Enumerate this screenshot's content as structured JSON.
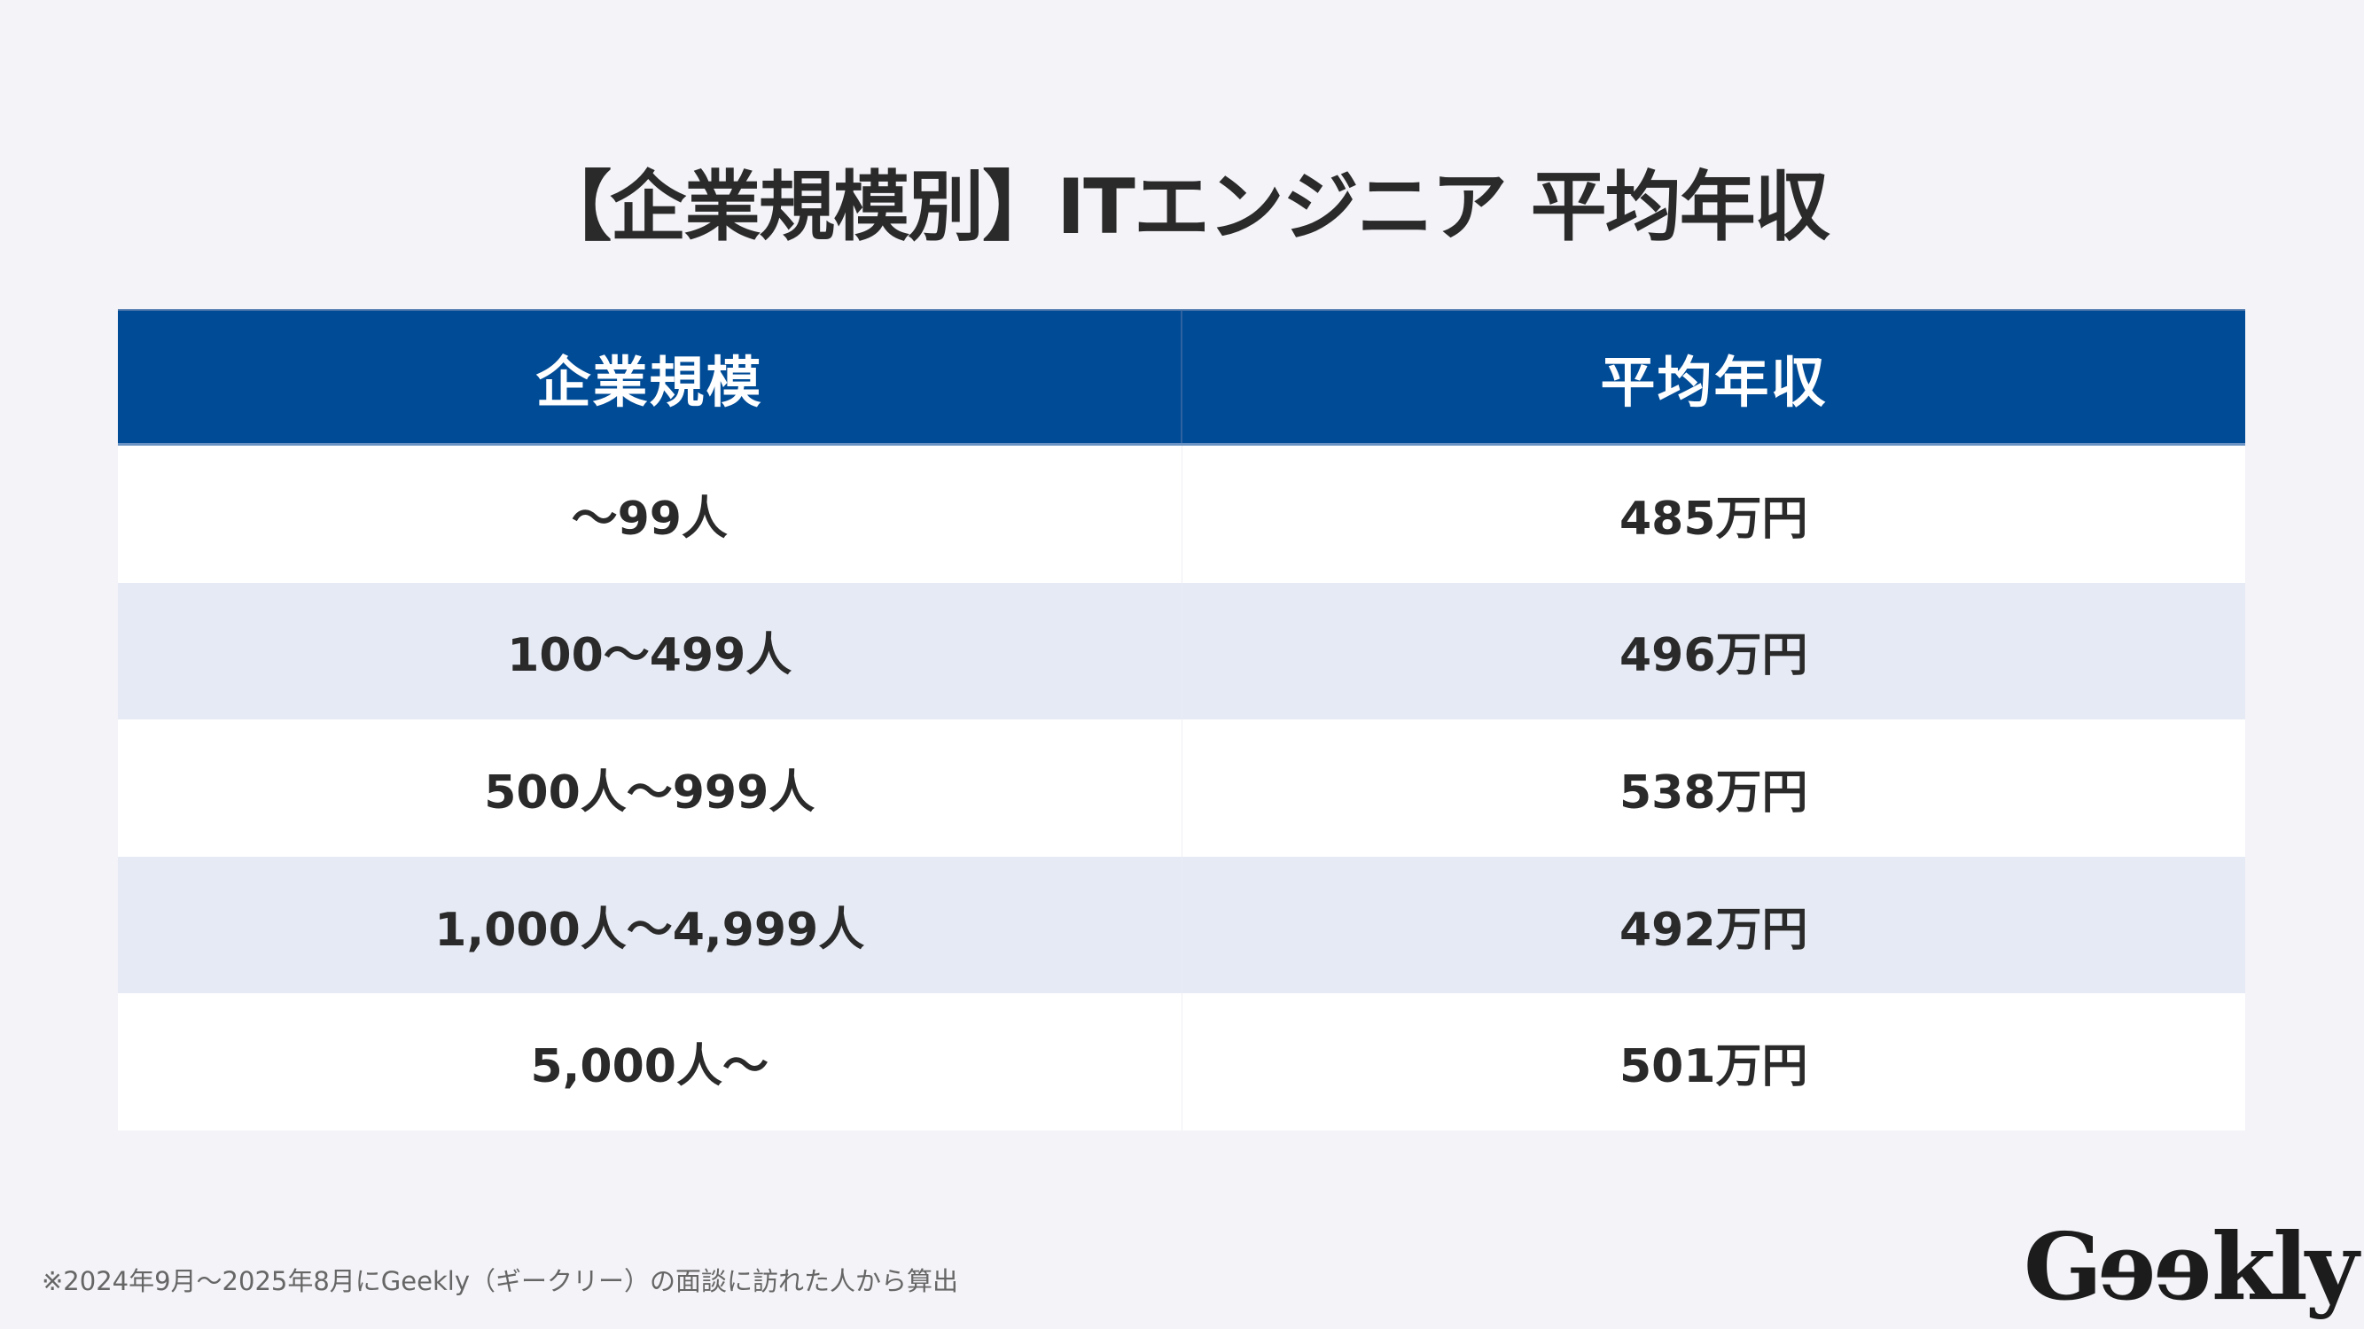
{
  "title": "【企業規模別】ITエンジニア 平均年収",
  "table": {
    "headers": [
      "企業規模",
      "平均年収"
    ],
    "rows": [
      {
        "size": "～99人",
        "salary": "485万円"
      },
      {
        "size": "100～499人",
        "salary": "496万円"
      },
      {
        "size": "500人～999人",
        "salary": "538万円"
      },
      {
        "size": "1,000人～4,999人",
        "salary": "492万円"
      },
      {
        "size": "5,000人～",
        "salary": "501万円"
      }
    ]
  },
  "footnote": "※2024年9月～2025年8月にGeekly（ギークリー）の面談に訪れた人から算出",
  "logo": {
    "parts": [
      "G",
      "e",
      "e",
      "kly"
    ],
    "text": "Geekly"
  },
  "colors": {
    "header_bg": "#004b96",
    "row_alt_bg": "#e6eaf4",
    "page_bg": "#f3f3f8",
    "text": "#2a2a2a"
  },
  "chart_data": {
    "type": "table",
    "title": "【企業規模別】ITエンジニア 平均年収",
    "columns": [
      "企業規模",
      "平均年収"
    ],
    "categories": [
      "～99人",
      "100～499人",
      "500人～999人",
      "1,000人～4,999人",
      "5,000人～"
    ],
    "values": [
      485,
      496,
      538,
      492,
      501
    ],
    "unit": "万円"
  }
}
